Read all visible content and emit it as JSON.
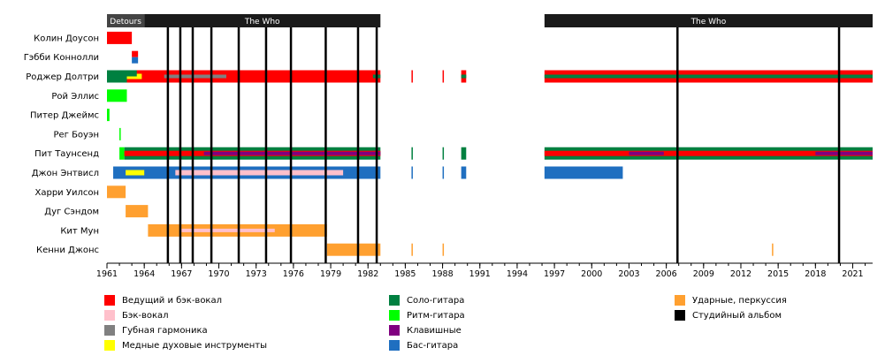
{
  "chart_data": {
    "type": "timeline",
    "xlim": [
      1961,
      2022.6
    ],
    "x_ticks": [
      "1961",
      "1964",
      "1967",
      "1970",
      "1973",
      "1976",
      "1979",
      "1982",
      "1985",
      "1988",
      "1991",
      "1994",
      "1997",
      "2000",
      "2003",
      "2006",
      "2009",
      "2012",
      "2015",
      "2018",
      "2021"
    ],
    "bands": [
      {
        "label": "Detours",
        "start": 1961,
        "end": 1964
      },
      {
        "label": "The Who",
        "start": 1964,
        "end": 1983
      },
      {
        "label": "The Who",
        "start": 1996.2,
        "end": 2022.6
      }
    ],
    "members": [
      "Колин Доусон",
      "Гэбби Коннолли",
      "Роджер Долтри",
      "Рой Эллис",
      "Питер Джеймс",
      "Рег Боуэн",
      "Пит Таунсенд",
      "Джон Энтвисл",
      "Харри Уилсон",
      "Дуг Сэндом",
      "Кит Мун",
      "Кенни Джонс"
    ],
    "roles": {
      "vocals": {
        "label": "Ведущий и бэк-вокал",
        "color": "#ff0000"
      },
      "backing_vocals": {
        "label": "Бэк-вокал",
        "color": "#ffc0cb"
      },
      "harmonica": {
        "label": "Губная гармоника",
        "color": "#808080"
      },
      "brass": {
        "label": "Медные духовые инструменты",
        "color": "#ffff00"
      },
      "lead_guitar": {
        "label": "Соло-гитара",
        "color": "#008040"
      },
      "rhythm_guitar": {
        "label": "Ритм-гитара",
        "color": "#00ff00"
      },
      "keyboards": {
        "label": "Клавишные",
        "color": "#800080"
      },
      "bass": {
        "label": "Бас-гитара",
        "color": "#1f6fc0"
      },
      "drums": {
        "label": "Ударные, перкуссия",
        "color": "#ffa030"
      },
      "albums": {
        "label": "Студийный альбом",
        "color": "#000000"
      }
    },
    "albums": [
      1965.9,
      1966.9,
      1967.9,
      1969.4,
      1971.6,
      1973.8,
      1975.8,
      1978.6,
      1981.2,
      1982.7,
      2006.9,
      2019.9
    ],
    "bars": [
      {
        "member": 0,
        "role": "vocals",
        "start": 1961.0,
        "end": 1963.0
      },
      {
        "member": 1,
        "role": "vocals",
        "start": 1963.0,
        "end": 1963.5,
        "part": "top"
      },
      {
        "member": 1,
        "role": "bass",
        "start": 1963.0,
        "end": 1963.5,
        "part": "bottom"
      },
      {
        "member": 2,
        "role": "lead_guitar",
        "start": 1961.0,
        "end": 1962.6
      },
      {
        "member": 2,
        "role": "vocals",
        "start": 1962.6,
        "end": 1983.0
      },
      {
        "member": 2,
        "role": "brass",
        "start": 1962.6,
        "end": 1963.8,
        "part": "mid"
      },
      {
        "member": 2,
        "role": "lead_guitar",
        "start": 1962.6,
        "end": 1963.4,
        "part": "top"
      },
      {
        "member": 2,
        "role": "harmonica",
        "start": 1965.6,
        "end": 1970.6,
        "part": "thin"
      },
      {
        "member": 2,
        "role": "lead_guitar",
        "start": 1982.4,
        "end": 1983.0,
        "part": "thin"
      },
      {
        "member": 2,
        "role": "vocals",
        "start": 1985.5,
        "end": 1985.6
      },
      {
        "member": 2,
        "role": "vocals",
        "start": 1988.0,
        "end": 1988.1
      },
      {
        "member": 2,
        "role": "vocals",
        "start": 1989.5,
        "end": 1989.9
      },
      {
        "member": 2,
        "role": "lead_guitar",
        "start": 1989.5,
        "end": 1989.9,
        "part": "thin"
      },
      {
        "member": 2,
        "role": "vocals",
        "start": 1996.2,
        "end": 2022.6
      },
      {
        "member": 2,
        "role": "lead_guitar",
        "start": 1996.2,
        "end": 2022.6,
        "part": "thin"
      },
      {
        "member": 3,
        "role": "rhythm_guitar",
        "start": 1961.0,
        "end": 1962.6
      },
      {
        "member": 4,
        "role": "rhythm_guitar",
        "start": 1961.0,
        "end": 1961.2
      },
      {
        "member": 5,
        "role": "rhythm_guitar",
        "start": 1962.0,
        "end": 1962.1
      },
      {
        "member": 6,
        "role": "rhythm_guitar",
        "start": 1962.0,
        "end": 1962.4
      },
      {
        "member": 6,
        "role": "lead_guitar",
        "start": 1962.4,
        "end": 1983.0
      },
      {
        "member": 6,
        "role": "vocals",
        "start": 1962.4,
        "end": 1983.0,
        "part": "mid"
      },
      {
        "member": 6,
        "role": "keyboards",
        "start": 1968.8,
        "end": 1983.0,
        "part": "thin"
      },
      {
        "member": 6,
        "role": "lead_guitar",
        "start": 1985.5,
        "end": 1985.6
      },
      {
        "member": 6,
        "role": "lead_guitar",
        "start": 1988.0,
        "end": 1988.1
      },
      {
        "member": 6,
        "role": "lead_guitar",
        "start": 1989.5,
        "end": 1989.9
      },
      {
        "member": 6,
        "role": "lead_guitar",
        "start": 1996.2,
        "end": 2022.6
      },
      {
        "member": 6,
        "role": "vocals",
        "start": 1996.2,
        "end": 2022.6,
        "part": "mid"
      },
      {
        "member": 6,
        "role": "keyboards",
        "start": 2003.0,
        "end": 2005.8,
        "part": "thin"
      },
      {
        "member": 6,
        "role": "keyboards",
        "start": 2018.0,
        "end": 2022.6,
        "part": "thin"
      },
      {
        "member": 7,
        "role": "bass",
        "start": 1961.5,
        "end": 1983.0
      },
      {
        "member": 7,
        "role": "brass",
        "start": 1962.5,
        "end": 1964.0,
        "part": "mid"
      },
      {
        "member": 7,
        "role": "backing_vocals",
        "start": 1966.5,
        "end": 1980.0,
        "part": "mid"
      },
      {
        "member": 7,
        "role": "bass",
        "start": 1985.5,
        "end": 1985.6
      },
      {
        "member": 7,
        "role": "bass",
        "start": 1988.0,
        "end": 1988.1
      },
      {
        "member": 7,
        "role": "bass",
        "start": 1989.5,
        "end": 1989.9
      },
      {
        "member": 7,
        "role": "bass",
        "start": 1996.2,
        "end": 2002.5
      },
      {
        "member": 8,
        "role": "drums",
        "start": 1961.0,
        "end": 1962.5
      },
      {
        "member": 9,
        "role": "drums",
        "start": 1962.5,
        "end": 1964.3
      },
      {
        "member": 10,
        "role": "drums",
        "start": 1964.3,
        "end": 1978.7
      },
      {
        "member": 10,
        "role": "backing_vocals",
        "start": 1967.0,
        "end": 1974.5,
        "part": "thin"
      },
      {
        "member": 11,
        "role": "drums",
        "start": 1978.7,
        "end": 1983.0
      },
      {
        "member": 11,
        "role": "drums",
        "start": 1985.5,
        "end": 1985.6
      },
      {
        "member": 11,
        "role": "drums",
        "start": 1988.0,
        "end": 1988.1
      },
      {
        "member": 11,
        "role": "drums",
        "start": 2014.5,
        "end": 2014.6
      }
    ],
    "legend": [
      [
        "vocals",
        "backing_vocals",
        "harmonica",
        "brass"
      ],
      [
        "lead_guitar",
        "rhythm_guitar",
        "keyboards",
        "bass"
      ],
      [
        "drums",
        "albums"
      ]
    ]
  }
}
